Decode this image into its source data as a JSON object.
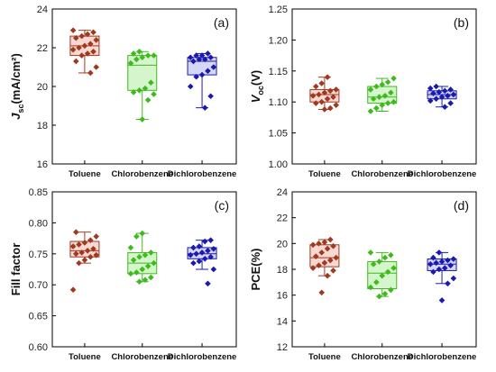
{
  "chart_data": [
    {
      "type": "box",
      "panel_label": "(a)",
      "ylabel": {
        "main": "J",
        "sub": "sc",
        "rest": "(mA/cm²)"
      },
      "ylim": [
        16,
        24
      ],
      "yticks": [
        16,
        18,
        20,
        22,
        24
      ],
      "categories": [
        "Toluene",
        "Chlorobenzene",
        "Dichlorobenzene"
      ],
      "series": [
        {
          "color": "#a0391f",
          "fill": "#f8d8d2",
          "box": {
            "min": 20.7,
            "q1": 21.6,
            "median": 22.1,
            "q3": 22.6,
            "max": 22.9
          },
          "points": [
            22.9,
            22.8,
            22.7,
            22.6,
            22.5,
            22.4,
            22.2,
            22.1,
            22.0,
            21.9,
            21.8,
            21.7,
            21.6,
            21.3,
            21.0,
            20.7
          ]
        },
        {
          "color": "#3dbb1b",
          "fill": "#d5f5cd",
          "box": {
            "min": 18.3,
            "q1": 19.8,
            "median": 21.1,
            "q3": 21.6,
            "max": 21.8
          },
          "points": [
            21.8,
            21.7,
            21.6,
            21.6,
            21.5,
            21.4,
            21.2,
            20.2,
            19.9,
            19.8,
            19.7,
            19.6,
            19.3,
            18.3
          ]
        },
        {
          "color": "#1a1ab0",
          "fill": "#d6d6f5",
          "box": {
            "min": 18.9,
            "q1": 20.6,
            "median": 21.3,
            "q3": 21.5,
            "max": 21.7
          },
          "points": [
            21.7,
            21.6,
            21.6,
            21.5,
            21.5,
            21.4,
            21.4,
            21.3,
            21.0,
            20.8,
            20.6,
            20.5,
            20.0,
            19.5,
            18.9
          ]
        }
      ]
    },
    {
      "type": "box",
      "panel_label": "(b)",
      "ylabel": {
        "main": "V",
        "sub": "oc",
        "rest": "(V)"
      },
      "ylim": [
        1.0,
        1.25
      ],
      "yticks": [
        "1.00",
        "1.05",
        "1.10",
        "1.15",
        "1.20",
        "1.25"
      ],
      "categories": [
        "Toluene",
        "Chlorobenzene",
        "Dichlorobenzene"
      ],
      "series": [
        {
          "color": "#a0391f",
          "fill": "#f8d8d2",
          "box": {
            "min": 1.088,
            "q1": 1.1,
            "median": 1.112,
            "q3": 1.12,
            "max": 1.14
          },
          "points": [
            1.14,
            1.13,
            1.125,
            1.12,
            1.118,
            1.115,
            1.112,
            1.11,
            1.108,
            1.105,
            1.1,
            1.098,
            1.095,
            1.09,
            1.088
          ]
        },
        {
          "color": "#3dbb1b",
          "fill": "#d5f5cd",
          "box": {
            "min": 1.085,
            "q1": 1.098,
            "median": 1.108,
            "q3": 1.125,
            "max": 1.138
          },
          "points": [
            1.138,
            1.132,
            1.128,
            1.125,
            1.12,
            1.115,
            1.11,
            1.108,
            1.105,
            1.1,
            1.098,
            1.095,
            1.09,
            1.085
          ]
        },
        {
          "color": "#1a1ab0",
          "fill": "#d6d6f5",
          "box": {
            "min": 1.092,
            "q1": 1.105,
            "median": 1.112,
            "q3": 1.118,
            "max": 1.125
          },
          "points": [
            1.125,
            1.122,
            1.12,
            1.118,
            1.116,
            1.114,
            1.112,
            1.11,
            1.108,
            1.105,
            1.102,
            1.098,
            1.092
          ]
        }
      ]
    },
    {
      "type": "box",
      "panel_label": "(c)",
      "ylabel": {
        "main": "Fill factor",
        "sub": "",
        "rest": ""
      },
      "ylim": [
        0.6,
        0.85
      ],
      "yticks": [
        "0.60",
        "0.65",
        "0.70",
        "0.75",
        "0.80",
        "0.85"
      ],
      "categories": [
        "Toluene",
        "Chlorobenzene",
        "Dichlorobenzene"
      ],
      "series": [
        {
          "color": "#a0391f",
          "fill": "#f8d8d2",
          "box": {
            "min": 0.735,
            "q1": 0.745,
            "median": 0.755,
            "q3": 0.77,
            "max": 0.785
          },
          "points": [
            0.785,
            0.778,
            0.772,
            0.768,
            0.765,
            0.762,
            0.758,
            0.755,
            0.752,
            0.75,
            0.748,
            0.745,
            0.74,
            0.735,
            0.692
          ]
        },
        {
          "color": "#3dbb1b",
          "fill": "#d5f5cd",
          "box": {
            "min": 0.705,
            "q1": 0.718,
            "median": 0.735,
            "q3": 0.752,
            "max": 0.783
          },
          "points": [
            0.783,
            0.778,
            0.76,
            0.752,
            0.748,
            0.745,
            0.74,
            0.735,
            0.73,
            0.725,
            0.72,
            0.718,
            0.712,
            0.708,
            0.705
          ]
        },
        {
          "color": "#1a1ab0",
          "fill": "#d6d6f5",
          "box": {
            "min": 0.725,
            "q1": 0.742,
            "median": 0.75,
            "q3": 0.76,
            "max": 0.772
          },
          "points": [
            0.772,
            0.77,
            0.762,
            0.76,
            0.758,
            0.755,
            0.752,
            0.75,
            0.748,
            0.745,
            0.742,
            0.738,
            0.735,
            0.725,
            0.702
          ]
        }
      ]
    },
    {
      "type": "box",
      "panel_label": "(d)",
      "ylabel": {
        "main": "PCE(%)",
        "sub": "",
        "rest": ""
      },
      "ylim": [
        12,
        24
      ],
      "yticks": [
        12,
        14,
        16,
        18,
        20,
        22,
        24
      ],
      "categories": [
        "Toluene",
        "Chlorobenzene",
        "Dichlorobenzene"
      ],
      "series": [
        {
          "color": "#a0391f",
          "fill": "#f8d8d2",
          "box": {
            "min": 17.5,
            "q1": 18.2,
            "median": 18.9,
            "q3": 19.9,
            "max": 20.3
          },
          "points": [
            20.3,
            20.1,
            20.0,
            19.9,
            19.8,
            19.6,
            19.3,
            19.0,
            18.9,
            18.7,
            18.5,
            18.3,
            18.1,
            17.9,
            17.5,
            16.2
          ]
        },
        {
          "color": "#3dbb1b",
          "fill": "#d5f5cd",
          "box": {
            "min": 15.9,
            "q1": 16.5,
            "median": 17.7,
            "q3": 18.6,
            "max": 19.3
          },
          "points": [
            19.3,
            19.1,
            18.9,
            18.6,
            18.4,
            18.1,
            17.8,
            17.5,
            17.0,
            16.6,
            16.4,
            16.1,
            15.9
          ]
        },
        {
          "color": "#1a1ab0",
          "fill": "#d6d6f5",
          "box": {
            "min": 16.9,
            "q1": 17.9,
            "median": 18.4,
            "q3": 18.8,
            "max": 19.3
          },
          "points": [
            19.3,
            18.9,
            18.8,
            18.7,
            18.6,
            18.5,
            18.4,
            18.3,
            18.1,
            18.0,
            17.8,
            17.3,
            16.9,
            15.6
          ]
        }
      ]
    }
  ]
}
